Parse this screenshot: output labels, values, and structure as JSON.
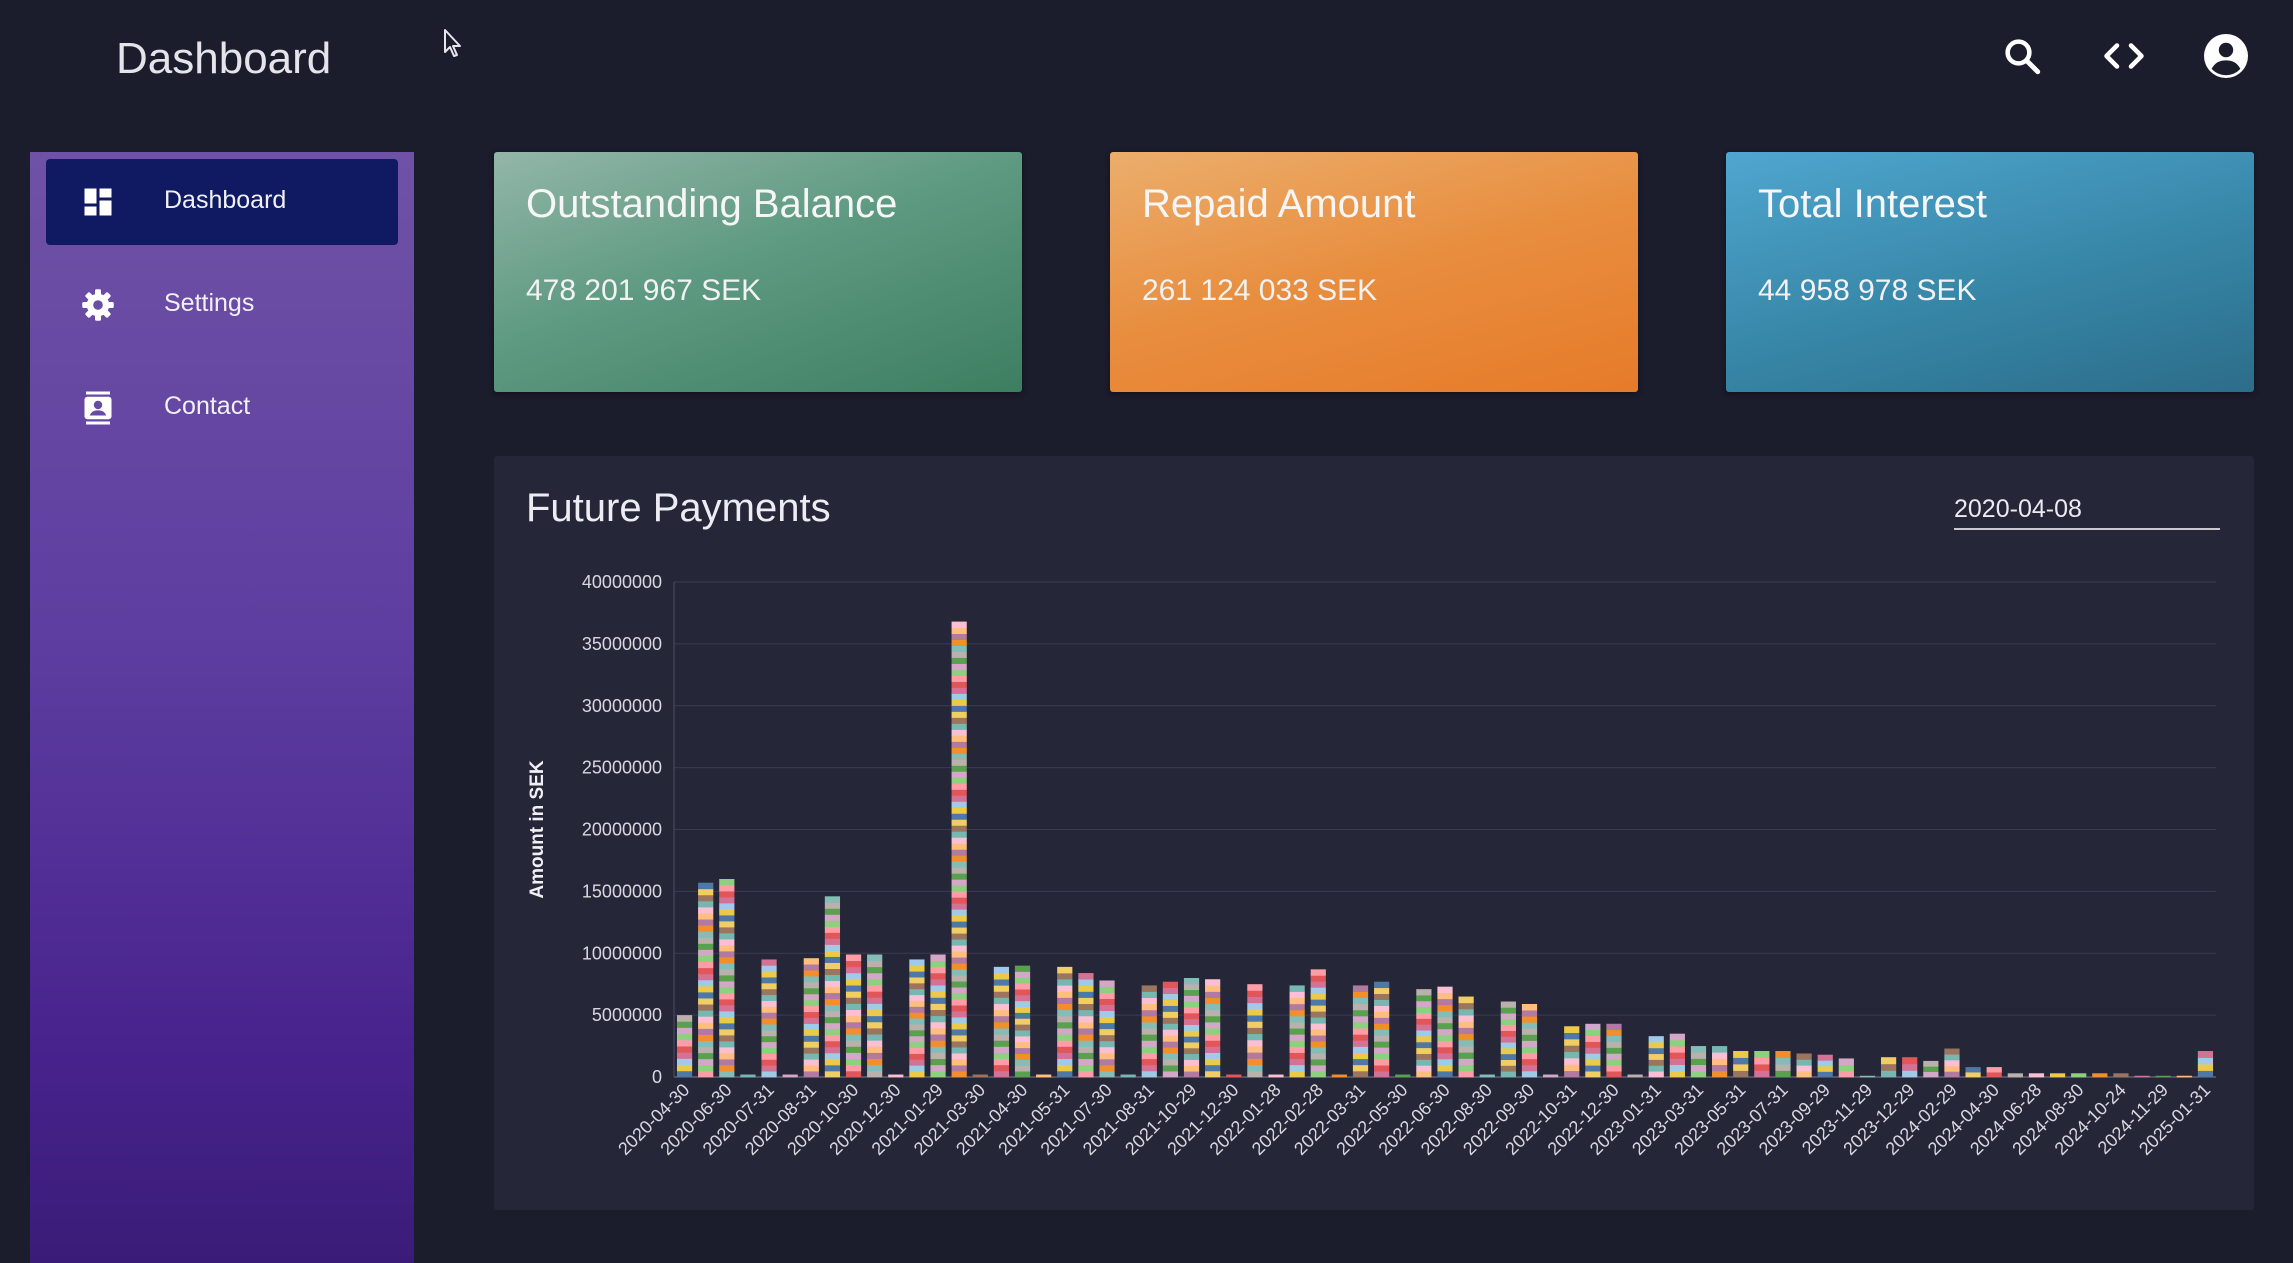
{
  "app": {
    "title": "Dashboard"
  },
  "header_icons": [
    "search-icon",
    "code-icon",
    "account-circle-icon"
  ],
  "sidebar": {
    "items": [
      {
        "label": "Dashboard",
        "icon": "dashboard-icon",
        "active": true
      },
      {
        "label": "Settings",
        "icon": "gear-icon",
        "active": false
      },
      {
        "label": "Contact",
        "icon": "contact-card-icon",
        "active": false
      }
    ]
  },
  "cards": [
    {
      "title": "Outstanding Balance",
      "value": "478 201 967 SEK",
      "color": "#5e9a81"
    },
    {
      "title": "Repaid Amount",
      "value": "261 124 033 SEK",
      "color": "#e88d3e"
    },
    {
      "title": "Total Interest",
      "value": "44 958 978 SEK",
      "color": "#3786a7"
    }
  ],
  "chart_panel": {
    "title": "Future Payments",
    "date_value": "2020-04-08"
  },
  "chart_data": {
    "type": "bar",
    "stacked": true,
    "ylabel": "Amount in SEK",
    "ylim": [
      0,
      40000000
    ],
    "yticks": [
      "0",
      "5000000",
      "10000000",
      "15000000",
      "20000000",
      "25000000",
      "30000000",
      "35000000",
      "40000000"
    ],
    "xtick_labels": [
      "2020-04-30",
      "2020-06-30",
      "2020-07-31",
      "2020-08-31",
      "2020-10-30",
      "2020-12-30",
      "2021-01-29",
      "2021-03-30",
      "2021-04-30",
      "2021-05-31",
      "2021-07-30",
      "2021-08-31",
      "2021-10-29",
      "2021-12-30",
      "2022-01-28",
      "2022-02-28",
      "2022-03-31",
      "2022-05-30",
      "2022-06-30",
      "2022-08-30",
      "2022-09-30",
      "2022-10-31",
      "2022-12-30",
      "2023-01-31",
      "2023-03-31",
      "2023-05-31",
      "2023-07-31",
      "2023-09-29",
      "2023-11-29",
      "2023-12-29",
      "2024-02-29",
      "2024-04-30",
      "2024-06-28",
      "2024-08-30",
      "2024-10-24",
      "2024-11-29",
      "2025-01-31"
    ],
    "grid": true,
    "series_colors": [
      "#4e79a7",
      "#f28e2b",
      "#e15759",
      "#76b7b2",
      "#59a14f",
      "#edc948",
      "#b07aa1",
      "#ff9da7",
      "#9c755f",
      "#bab0ac",
      "#a0cbe8",
      "#ffbe7d",
      "#8cd17d",
      "#f1ce63",
      "#86bcb6",
      "#d37295",
      "#fabfd2",
      "#d4a6c8"
    ],
    "values": [
      5000000,
      15700000,
      16000000,
      200000,
      9500000,
      200000,
      9600000,
      14600000,
      9900000,
      9900000,
      200000,
      9500000,
      9900000,
      36800000,
      200000,
      8900000,
      9000000,
      200000,
      8900000,
      8400000,
      7800000,
      200000,
      7400000,
      7700000,
      8000000,
      7900000,
      200000,
      7500000,
      200000,
      7400000,
      8700000,
      200000,
      7400000,
      7700000,
      200000,
      7100000,
      7300000,
      6500000,
      200000,
      6100000,
      5900000,
      200000,
      4100000,
      4300000,
      4300000,
      200000,
      3300000,
      3500000,
      2500000,
      2500000,
      2100000,
      2100000,
      2100000,
      1900000,
      1800000,
      1500000,
      100000,
      1600000,
      1600000,
      1300000,
      2300000,
      800000,
      800000,
      300000,
      300000,
      300000,
      300000,
      300000,
      300000,
      100000,
      100000,
      100000,
      2100000
    ]
  }
}
